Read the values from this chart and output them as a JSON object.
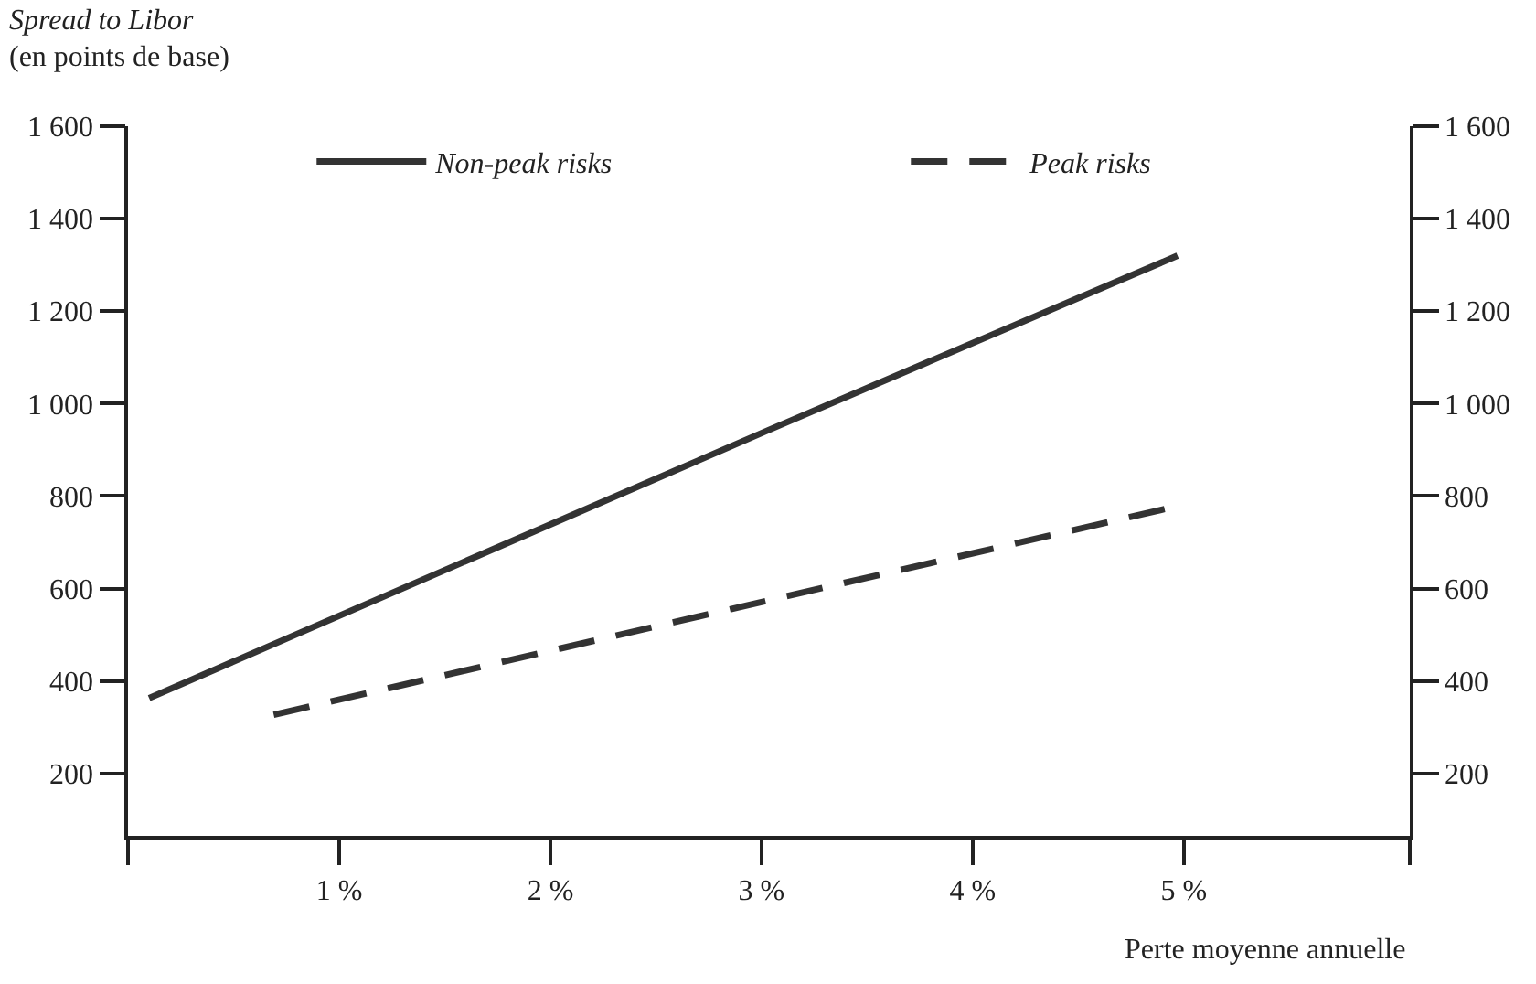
{
  "chart_data": {
    "type": "line",
    "title": "Spread to Libor",
    "subtitle": "(en points de base)",
    "xlabel": "Perte moyenne annuelle",
    "xlim": [
      0,
      6.07
    ],
    "xticks": [
      {
        "value": 0,
        "label": null
      },
      {
        "value": 1,
        "label": "1 %"
      },
      {
        "value": 2,
        "label": "2 %"
      },
      {
        "value": 3,
        "label": "3 %"
      },
      {
        "value": 4,
        "label": "4 %"
      },
      {
        "value": 5,
        "label": "5 %"
      },
      {
        "value": 6.07,
        "label": null
      }
    ],
    "ylim": [
      65,
      1600
    ],
    "yticks": [
      200,
      400,
      600,
      800,
      {
        "value": 1000,
        "label": "1 000"
      },
      {
        "value": 1200,
        "label": "1 200"
      },
      {
        "value": 1400,
        "label": "1 400"
      },
      {
        "value": 1600,
        "label": "1 600"
      }
    ],
    "y2lim": [
      65,
      1600
    ],
    "y2ticks": [
      200,
      400,
      600,
      800,
      {
        "value": 1000,
        "label": "1 000"
      },
      {
        "value": 1200,
        "label": "1 200"
      },
      {
        "value": 1400,
        "label": "1 400"
      },
      {
        "value": 1600,
        "label": "1 600"
      }
    ],
    "series": [
      {
        "name": "Non-peak risks",
        "color": "#333333",
        "line_style": "solid",
        "x": [
          0.1,
          3.03,
          4.97
        ],
        "values": [
          363,
          942,
          1320
        ]
      },
      {
        "name": "Peak risks",
        "color": "#333333",
        "line_style": "dashed",
        "x": [
          0.69,
          3.03,
          4.92
        ],
        "values": [
          327,
          574,
          773
        ]
      }
    ],
    "legend": "top left",
    "marker": "none"
  }
}
